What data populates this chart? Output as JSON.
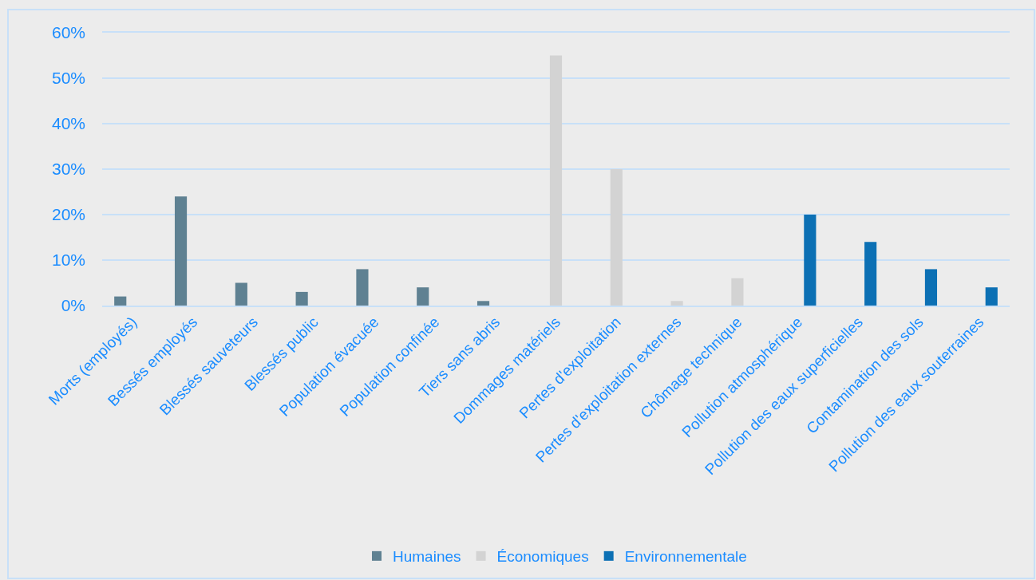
{
  "chart_data": {
    "type": "bar",
    "categories": [
      "Morts (employés)",
      "Bessés employés",
      "Blessés sauveteurs",
      "Blessés public",
      "Population évacuée",
      "Population confinée",
      "Tiers sans abris",
      "Dommages matériels",
      "Pertes d'exploitation",
      "Pertes d'exploitation externes",
      "Chômage technique",
      "Pollution atmosphérique",
      "Pollution des eaux superficielles",
      "Contamination des sols",
      "Pollution des eaux souterraines"
    ],
    "series": [
      {
        "name": "Humaines",
        "color": "#5f8192",
        "values": [
          2,
          24,
          5,
          3,
          8,
          4,
          1,
          null,
          null,
          null,
          null,
          null,
          null,
          null,
          null
        ]
      },
      {
        "name": "Économiques",
        "color": "#d3d3d3",
        "values": [
          null,
          null,
          null,
          null,
          null,
          null,
          null,
          55,
          30,
          1,
          6,
          null,
          null,
          null,
          null
        ]
      },
      {
        "name": "Environnementale",
        "color": "#0c70b4",
        "values": [
          null,
          null,
          null,
          null,
          null,
          null,
          null,
          null,
          null,
          null,
          null,
          20,
          14,
          8,
          4
        ]
      }
    ],
    "ylim": [
      0,
      60
    ],
    "yticks": [
      {
        "value": 0,
        "label": "0%"
      },
      {
        "value": 10,
        "label": "10%"
      },
      {
        "value": 20,
        "label": "20%"
      },
      {
        "value": 30,
        "label": "30%"
      },
      {
        "value": 40,
        "label": "40%"
      },
      {
        "value": 50,
        "label": "50%"
      },
      {
        "value": 60,
        "label": "60%"
      }
    ],
    "grid": "y",
    "legend": "bottom"
  }
}
